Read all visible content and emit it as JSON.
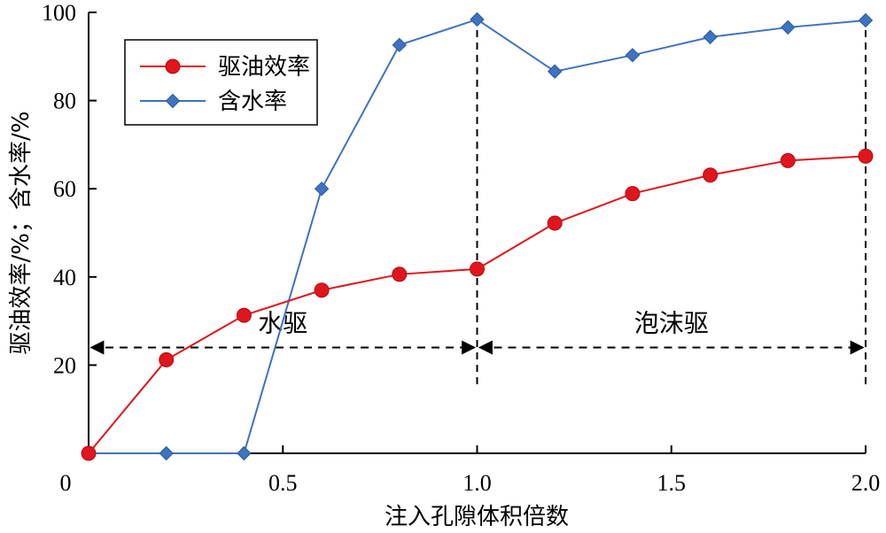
{
  "chart_data": {
    "type": "line",
    "xlabel": "注入孔隙体积倍数",
    "ylabel": "驱油效率/%；含水率/%",
    "xlim": [
      0,
      2.0
    ],
    "ylim": [
      0,
      100
    ],
    "x_ticks": [
      "0",
      "0.5",
      "1.0",
      "1.5",
      "2.0"
    ],
    "y_ticks": [
      "20",
      "40",
      "60",
      "80",
      "100"
    ],
    "legend_position": "top-left",
    "grid": false,
    "series": [
      {
        "name": "驱油效率",
        "color": "#e0151e",
        "marker": "circle",
        "x": [
          0,
          0.2,
          0.4,
          0.6,
          0.8,
          1.0,
          1.2,
          1.4,
          1.6,
          1.8,
          2.0
        ],
        "y": [
          0,
          21.2,
          31.3,
          37.0,
          40.6,
          41.8,
          52.2,
          58.9,
          63.1,
          66.4,
          67.4
        ]
      },
      {
        "name": "含水率",
        "color": "#3f72bf",
        "marker": "diamond",
        "x": [
          0,
          0.2,
          0.4,
          0.6,
          0.8,
          1.0,
          1.2,
          1.4,
          1.6,
          1.8,
          2.0
        ],
        "y": [
          0,
          0,
          0,
          60.0,
          92.6,
          98.4,
          86.6,
          90.3,
          94.4,
          96.6,
          98.2
        ]
      }
    ],
    "regions": [
      {
        "label": "水驱",
        "x_start": 0,
        "x_end": 1.0
      },
      {
        "label": "泡沫驱",
        "x_start": 1.0,
        "x_end": 2.0
      }
    ],
    "region_arrow_y": 24,
    "divider_x": [
      1.0,
      2.0
    ]
  }
}
